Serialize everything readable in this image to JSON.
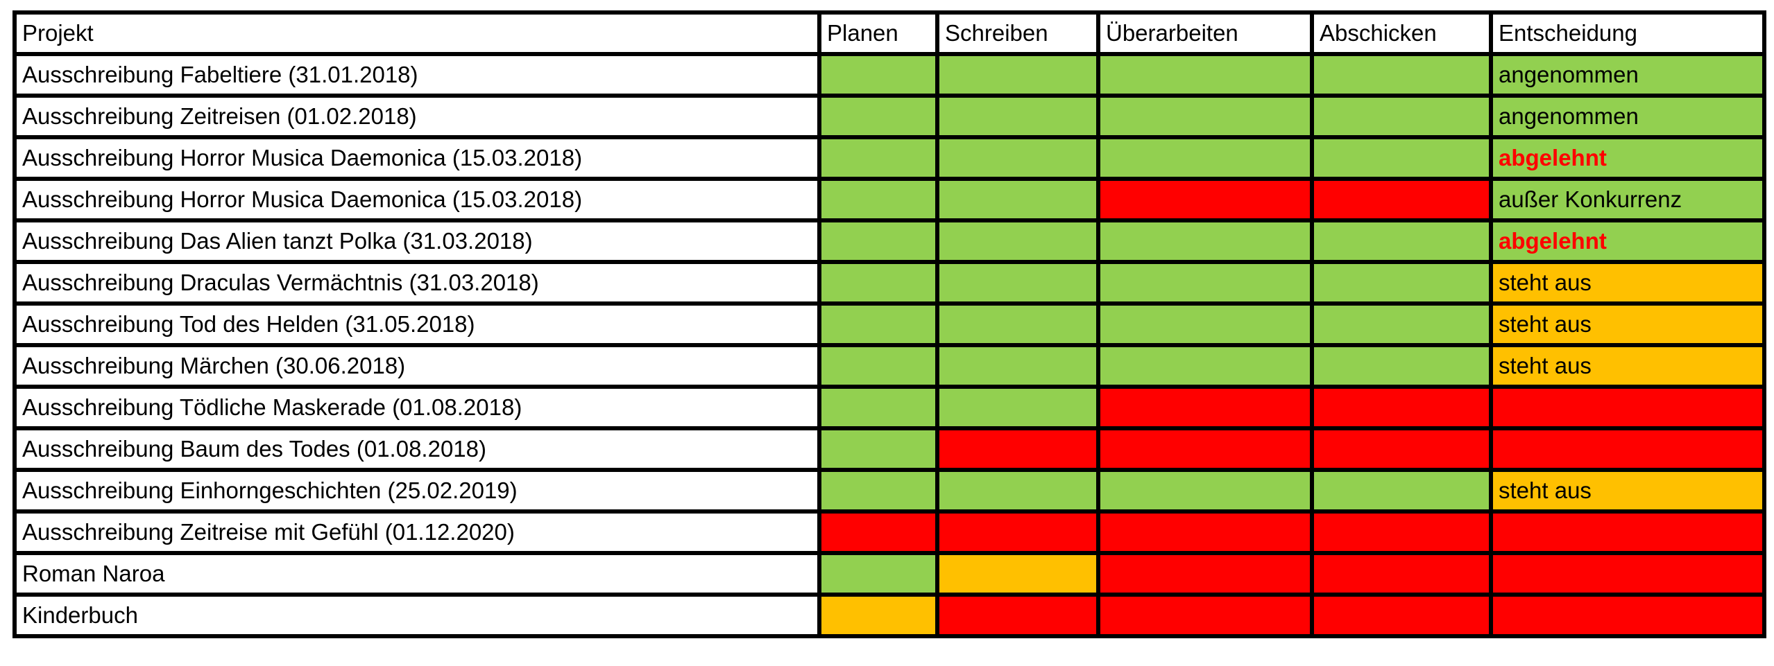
{
  "status_colors": {
    "green": "#92D050",
    "orange": "#FFC000",
    "red": "#FF0000"
  },
  "text_colors": {
    "default": "#000000",
    "rejected": "#FF0000"
  },
  "table": {
    "headers": [
      "Projekt",
      "Planen",
      "Schreiben",
      "Überarbeiten",
      "Abschicken",
      "Entscheidung"
    ],
    "rows": [
      {
        "project": "Ausschreibung Fabeltiere (31.01.2018)",
        "stages": [
          "green",
          "green",
          "green",
          "green"
        ],
        "decision": {
          "text": "angenommen",
          "bg": "green",
          "emphasis": false
        }
      },
      {
        "project": "Ausschreibung Zeitreisen (01.02.2018)",
        "stages": [
          "green",
          "green",
          "green",
          "green"
        ],
        "decision": {
          "text": "angenommen",
          "bg": "green",
          "emphasis": false
        }
      },
      {
        "project": "Ausschreibung Horror Musica Daemonica (15.03.2018)",
        "stages": [
          "green",
          "green",
          "green",
          "green"
        ],
        "decision": {
          "text": "abgelehnt",
          "bg": "green",
          "emphasis": true
        }
      },
      {
        "project": "Ausschreibung Horror Musica Daemonica (15.03.2018)",
        "stages": [
          "green",
          "green",
          "red",
          "red"
        ],
        "decision": {
          "text": "außer Konkurrenz",
          "bg": "green",
          "emphasis": false
        }
      },
      {
        "project": "Ausschreibung Das Alien tanzt Polka (31.03.2018)",
        "stages": [
          "green",
          "green",
          "green",
          "green"
        ],
        "decision": {
          "text": "abgelehnt",
          "bg": "green",
          "emphasis": true
        }
      },
      {
        "project": "Ausschreibung Draculas Vermächtnis (31.03.2018)",
        "stages": [
          "green",
          "green",
          "green",
          "green"
        ],
        "decision": {
          "text": "steht aus",
          "bg": "orange",
          "emphasis": false
        }
      },
      {
        "project": "Ausschreibung Tod des Helden (31.05.2018)",
        "stages": [
          "green",
          "green",
          "green",
          "green"
        ],
        "decision": {
          "text": "steht aus",
          "bg": "orange",
          "emphasis": false
        }
      },
      {
        "project": "Ausschreibung Märchen (30.06.2018)",
        "stages": [
          "green",
          "green",
          "green",
          "green"
        ],
        "decision": {
          "text": "steht aus",
          "bg": "orange",
          "emphasis": false
        }
      },
      {
        "project": "Ausschreibung Tödliche Maskerade (01.08.2018)",
        "stages": [
          "green",
          "green",
          "red",
          "red"
        ],
        "decision": {
          "text": "",
          "bg": "red",
          "emphasis": false
        }
      },
      {
        "project": "Ausschreibung Baum des Todes (01.08.2018)",
        "stages": [
          "green",
          "red",
          "red",
          "red"
        ],
        "decision": {
          "text": "",
          "bg": "red",
          "emphasis": false
        }
      },
      {
        "project": "Ausschreibung Einhorngeschichten (25.02.2019)",
        "stages": [
          "green",
          "green",
          "green",
          "green"
        ],
        "decision": {
          "text": "steht aus",
          "bg": "orange",
          "emphasis": false
        }
      },
      {
        "project": "Ausschreibung Zeitreise mit Gefühl (01.12.2020)",
        "stages": [
          "red",
          "red",
          "red",
          "red"
        ],
        "decision": {
          "text": "",
          "bg": "red",
          "emphasis": false
        }
      },
      {
        "project": "Roman Naroa",
        "stages": [
          "green",
          "orange",
          "red",
          "red"
        ],
        "decision": {
          "text": "",
          "bg": "red",
          "emphasis": false
        }
      },
      {
        "project": "Kinderbuch",
        "stages": [
          "orange",
          "red",
          "red",
          "red"
        ],
        "decision": {
          "text": "",
          "bg": "red",
          "emphasis": false
        }
      }
    ]
  }
}
